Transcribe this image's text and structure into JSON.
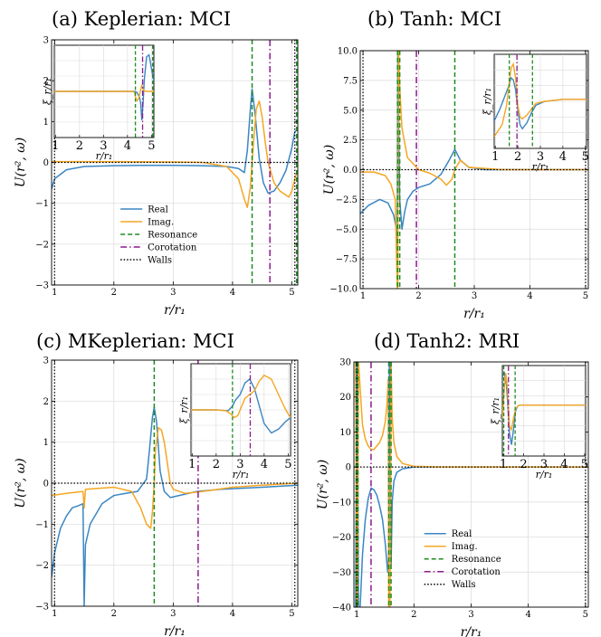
{
  "colors": {
    "real": "#3b86c4",
    "imag": "#f5a623",
    "resonance": "#1e8c1e",
    "corotation": "#8b1a8b",
    "walls": "#000000",
    "grid": "#d9d9d9"
  },
  "legend_labels": [
    "Real",
    "Imag.",
    "Resonance",
    "Corotation",
    "Walls"
  ],
  "chart_data": [
    {
      "type": "line",
      "title": "(a) Keplerian: MCI",
      "xlabel": "r/r₁",
      "ylabel": "U(r², ω)",
      "xlim": [
        0.95,
        5.1
      ],
      "ylim": [
        -3,
        3
      ],
      "xticks": [
        1,
        2,
        3,
        4,
        5
      ],
      "yticks": [
        -3,
        -2,
        -1,
        0,
        1,
        2,
        3
      ],
      "grid": true,
      "legend": "lower-center",
      "resonance_x": [
        4.33,
        5.08
      ],
      "corotation_x": [
        4.63
      ],
      "walls_x": [
        1.0,
        5.05
      ],
      "walls_y": [
        0
      ],
      "series": [
        {
          "name": "Real",
          "x": [
            0.95,
            1.0,
            1.2,
            1.5,
            2.0,
            2.5,
            3.0,
            3.5,
            3.9,
            4.1,
            4.2,
            4.25,
            4.3,
            4.33,
            4.38,
            4.45,
            4.52,
            4.6,
            4.7,
            4.8,
            4.9,
            5.0,
            5.05,
            5.1
          ],
          "y": [
            -0.65,
            -0.4,
            -0.18,
            -0.1,
            -0.08,
            -0.07,
            -0.07,
            -0.08,
            -0.1,
            -0.15,
            -0.25,
            0.3,
            1.3,
            1.8,
            1.2,
            0.1,
            -0.5,
            -0.75,
            -0.7,
            -0.5,
            -0.2,
            0.35,
            0.75,
            0.8
          ]
        },
        {
          "name": "Imag.",
          "x": [
            0.95,
            1.5,
            2.0,
            3.0,
            3.5,
            3.9,
            4.1,
            4.2,
            4.25,
            4.3,
            4.35,
            4.4,
            4.45,
            4.5,
            4.55,
            4.6,
            4.7,
            4.8,
            4.9,
            4.95,
            5.0,
            5.05,
            5.1
          ],
          "y": [
            0.02,
            0.02,
            0.02,
            0.01,
            0.0,
            -0.1,
            -0.4,
            -0.9,
            -1.1,
            -0.6,
            0.4,
            1.3,
            1.5,
            1.1,
            0.5,
            0.0,
            -0.5,
            -0.7,
            -0.8,
            -0.85,
            -0.7,
            -0.4,
            -0.2
          ]
        }
      ],
      "inset": {
        "xlabel": "r/r₁",
        "ylabel": "ξ_r/r₁",
        "xlim": [
          0.95,
          5.1
        ],
        "ylim": [
          -1.2,
          1.2
        ],
        "xticks": [
          1,
          2,
          3,
          4,
          5
        ],
        "resonance_x": [
          4.33,
          5.05
        ],
        "corotation_x": [
          4.63
        ],
        "series": [
          {
            "name": "Real",
            "x": [
              0.95,
              4.2,
              4.3,
              4.4,
              4.5,
              4.55,
              4.6,
              4.65,
              4.7,
              4.8,
              4.9,
              5.0,
              5.1
            ],
            "y": [
              0,
              0,
              0,
              -0.03,
              -0.15,
              -0.3,
              -0.75,
              -0.3,
              0.3,
              0.9,
              0.95,
              0.6,
              0.25
            ]
          },
          {
            "name": "Imag.",
            "x": [
              0.95,
              4.25,
              4.3,
              4.35,
              4.4,
              4.45,
              4.5,
              4.55,
              4.6,
              4.65,
              4.7,
              4.8,
              4.9,
              5.0,
              5.1
            ],
            "y": [
              0,
              0,
              -0.05,
              -0.18,
              -0.25,
              -0.2,
              -0.1,
              0.05,
              0.15,
              0.05,
              0.02,
              0.0,
              0.0,
              0.0,
              0.0
            ]
          }
        ]
      }
    },
    {
      "type": "line",
      "title": "(b) Tanh: MCI",
      "xlabel": "r/r₁",
      "ylabel": "U(r², ω)",
      "xlim": [
        0.95,
        5.05
      ],
      "ylim": [
        -10,
        10
      ],
      "xticks": [
        1,
        2,
        3,
        4,
        5
      ],
      "yticks": [
        -10.0,
        -7.5,
        -5.0,
        -2.5,
        0.0,
        2.5,
        5.0,
        7.5,
        10.0
      ],
      "grid": true,
      "resonance_x": [
        1.62,
        1.66,
        2.65
      ],
      "corotation_x": [
        1.96
      ],
      "walls_x": [
        1.0,
        5.0
      ],
      "walls_y": [
        0
      ],
      "series": [
        {
          "name": "Real",
          "x": [
            0.95,
            1.1,
            1.3,
            1.45,
            1.55,
            1.6,
            1.615,
            1.625,
            1.635,
            1.645,
            1.66,
            1.7,
            1.75,
            1.8,
            1.9,
            2.0,
            2.2,
            2.4,
            2.55,
            2.65,
            2.75,
            2.9,
            3.2,
            4.0,
            5.05
          ],
          "y": [
            -3.7,
            -3.0,
            -2.5,
            -2.8,
            -3.8,
            -5.0,
            -8,
            10,
            10,
            2.0,
            -2.5,
            -5.0,
            -3.5,
            -2.5,
            -1.8,
            -1.5,
            -1.2,
            -0.4,
            0.8,
            1.7,
            0.8,
            0.2,
            0.0,
            0.0,
            0.0
          ]
        },
        {
          "name": "Imag.",
          "x": [
            0.95,
            1.2,
            1.4,
            1.5,
            1.58,
            1.605,
            1.615,
            1.625,
            1.635,
            1.64,
            1.66,
            1.7,
            1.8,
            2.0,
            2.2,
            2.4,
            2.5,
            2.6,
            2.65,
            2.75,
            2.9,
            3.5,
            5.05
          ],
          "y": [
            -0.2,
            -0.2,
            -0.5,
            -1.2,
            -2.5,
            -8,
            -10,
            -10,
            10,
            10,
            7.0,
            3.5,
            1.0,
            0.0,
            -0.3,
            -0.8,
            -1.3,
            -0.8,
            0.0,
            0.8,
            0.2,
            0.0,
            0.0
          ]
        }
      ],
      "inset": {
        "xlabel": "r/r₁",
        "ylabel": "ξ_r/r₁",
        "xlim": [
          0.95,
          5.05
        ],
        "ylim": [
          -1.2,
          1.2
        ],
        "xticks": [
          1,
          2,
          3,
          4,
          5
        ],
        "resonance_x": [
          1.62,
          2.65
        ],
        "corotation_x": [
          1.96
        ],
        "series": [
          {
            "name": "Real",
            "x": [
              0.95,
              1.2,
              1.4,
              1.6,
              1.7,
              1.8,
              1.9,
              2.0,
              2.1,
              2.2,
              2.4,
              2.6,
              2.8,
              3.2,
              4.0,
              5.05
            ],
            "y": [
              -0.5,
              -0.2,
              0.1,
              0.4,
              0.6,
              0.55,
              0.3,
              -0.2,
              -0.6,
              -0.7,
              -0.55,
              -0.3,
              -0.1,
              0.0,
              0.05,
              0.05
            ]
          },
          {
            "name": "Imag.",
            "x": [
              0.95,
              1.3,
              1.5,
              1.6,
              1.7,
              1.8,
              1.9,
              2.0,
              2.1,
              2.2,
              2.4,
              2.6,
              2.8,
              3.2,
              4.0,
              5.05
            ],
            "y": [
              -0.9,
              -0.6,
              -0.1,
              0.4,
              0.85,
              0.95,
              0.6,
              -0.1,
              -0.4,
              -0.45,
              -0.35,
              -0.2,
              -0.05,
              0.0,
              0.05,
              0.05
            ]
          }
        ]
      }
    },
    {
      "type": "line",
      "title": "(c) MKeplerian: MCI",
      "xlabel": "r/r₁",
      "ylabel": "U(r², ω)",
      "xlim": [
        0.95,
        5.1
      ],
      "ylim": [
        -3,
        3
      ],
      "xticks": [
        1,
        2,
        3,
        4,
        5
      ],
      "yticks": [
        -3,
        -2,
        -1,
        0,
        1,
        2,
        3
      ],
      "grid": true,
      "resonance_x": [
        2.68
      ],
      "corotation_x": [
        3.42
      ],
      "walls_x": [
        1.0,
        5.05
      ],
      "walls_y": [
        0
      ],
      "series": [
        {
          "name": "Real",
          "x": [
            0.95,
            1.0,
            1.1,
            1.2,
            1.3,
            1.4,
            1.48,
            1.5,
            1.52,
            1.6,
            1.8,
            2.0,
            2.2,
            2.4,
            2.55,
            2.6,
            2.65,
            2.68,
            2.72,
            2.78,
            2.85,
            2.95,
            3.1,
            3.4,
            3.8,
            4.5,
            5.1
          ],
          "y": [
            -2.3,
            -1.7,
            -1.1,
            -0.8,
            -0.6,
            -0.55,
            -0.5,
            -3.0,
            -1.5,
            -1.0,
            -0.5,
            -0.3,
            -0.25,
            -0.2,
            0.1,
            0.8,
            1.6,
            1.85,
            1.5,
            0.3,
            -0.2,
            -0.35,
            -0.3,
            -0.2,
            -0.15,
            -0.1,
            -0.05
          ]
        },
        {
          "name": "Imag.",
          "x": [
            0.95,
            1.2,
            1.48,
            1.5,
            1.52,
            2.0,
            2.3,
            2.45,
            2.55,
            2.62,
            2.65,
            2.68,
            2.7,
            2.75,
            2.8,
            2.85,
            2.9,
            2.95,
            3.0,
            3.2,
            3.5,
            4.0,
            4.5,
            5.1
          ],
          "y": [
            -0.3,
            -0.25,
            -0.2,
            -0.6,
            -0.15,
            -0.1,
            -0.2,
            -0.6,
            -1.0,
            -1.1,
            -0.7,
            0.0,
            0.8,
            1.35,
            1.3,
            1.0,
            0.5,
            0.0,
            -0.15,
            -0.25,
            -0.2,
            -0.1,
            -0.05,
            0.0
          ]
        }
      ],
      "inset": {
        "xlabel": "r/r₁",
        "ylabel": "ξ_r/r₁",
        "xlim": [
          0.95,
          5.1
        ],
        "ylim": [
          -1.2,
          1.2
        ],
        "xticks": [
          1,
          2,
          3,
          4,
          5
        ],
        "resonance_x": [
          2.68
        ],
        "corotation_x": [
          3.42
        ],
        "series": [
          {
            "name": "Real",
            "x": [
              0.95,
              2.0,
              2.5,
              2.68,
              2.8,
              3.0,
              3.2,
              3.4,
              3.6,
              3.8,
              4.0,
              4.3,
              4.6,
              4.9,
              5.1
            ],
            "y": [
              0,
              0.0,
              -0.02,
              0.1,
              0.25,
              0.4,
              0.7,
              0.8,
              0.55,
              0.1,
              -0.35,
              -0.6,
              -0.5,
              -0.3,
              -0.2
            ]
          },
          {
            "name": "Imag.",
            "x": [
              0.95,
              2.0,
              2.4,
              2.6,
              2.75,
              2.9,
              3.0,
              3.2,
              3.4,
              3.6,
              3.8,
              4.0,
              4.3,
              4.6,
              4.9,
              5.1
            ],
            "y": [
              0,
              0.0,
              -0.02,
              -0.1,
              -0.2,
              -0.15,
              0.0,
              0.3,
              0.4,
              0.5,
              0.75,
              0.9,
              0.8,
              0.4,
              0.0,
              -0.2
            ]
          }
        ]
      }
    },
    {
      "type": "line",
      "title": "(d) Tanh2: MRI",
      "xlabel": "r/r₁",
      "ylabel": "U(r², ω)",
      "xlim": [
        0.95,
        5.05
      ],
      "ylim": [
        -40,
        30
      ],
      "xticks": [
        1,
        2,
        3,
        4,
        5
      ],
      "yticks": [
        -40,
        -30,
        -20,
        -10,
        0,
        10,
        20,
        30
      ],
      "grid": true,
      "legend": "lower-center",
      "resonance_x": [
        0.99,
        1.02,
        1.56,
        1.6
      ],
      "corotation_x": [
        1.25
      ],
      "walls_x": [
        1.0,
        5.0
      ],
      "walls_y": [
        0
      ],
      "series": [
        {
          "name": "Real",
          "x": [
            0.95,
            0.98,
            1.0,
            1.01,
            1.03,
            1.06,
            1.1,
            1.15,
            1.2,
            1.25,
            1.3,
            1.35,
            1.4,
            1.45,
            1.5,
            1.54,
            1.56,
            1.57,
            1.58,
            1.6,
            1.62,
            1.65,
            1.7,
            1.8,
            2.0,
            2.5,
            5.05
          ],
          "y": [
            -40,
            -40,
            30,
            30,
            -40,
            -40,
            -25,
            -15,
            -9,
            -6,
            -6.5,
            -8,
            -11,
            -15,
            -22,
            -30,
            -25,
            30,
            30,
            -28,
            -10,
            -4,
            -1.5,
            -0.5,
            0.0,
            0.0,
            0.0
          ]
        },
        {
          "name": "Imag.",
          "x": [
            0.95,
            0.98,
            1.0,
            1.01,
            1.03,
            1.05,
            1.1,
            1.15,
            1.2,
            1.25,
            1.3,
            1.35,
            1.4,
            1.45,
            1.5,
            1.53,
            1.55,
            1.56,
            1.58,
            1.6,
            1.62,
            1.65,
            1.7,
            1.8,
            2.0,
            2.5,
            5.05
          ],
          "y": [
            30,
            30,
            -40,
            -40,
            30,
            25,
            12,
            8,
            6,
            5,
            5,
            6,
            7,
            9,
            13,
            18,
            25,
            -40,
            -40,
            30,
            14,
            7,
            3,
            1,
            0.2,
            0.0,
            0.0
          ]
        }
      ],
      "inset": {
        "xlabel": "r/r₁",
        "ylabel": "ξ_r/r₁",
        "xlim": [
          0.95,
          5.05
        ],
        "ylim": [
          -1.2,
          1.2
        ],
        "xticks": [
          1,
          2,
          3,
          4,
          5
        ],
        "resonance_x": [
          1.02,
          1.58
        ],
        "corotation_x": [
          1.25
        ],
        "series": [
          {
            "name": "Real",
            "x": [
              0.95,
              1.05,
              1.15,
              1.2,
              1.3,
              1.4,
              1.5,
              1.6,
              1.7,
              1.8,
              2.0,
              3.0,
              5.05
            ],
            "y": [
              0.9,
              1.0,
              0.7,
              0.3,
              -0.6,
              -0.9,
              -0.5,
              0.0,
              0.12,
              0.15,
              0.15,
              0.15,
              0.15
            ]
          },
          {
            "name": "Imag.",
            "x": [
              0.95,
              1.05,
              1.12,
              1.2,
              1.3,
              1.4,
              1.5,
              1.6,
              1.7,
              1.8,
              2.0,
              3.0,
              5.05
            ],
            "y": [
              -0.2,
              0.6,
              1.0,
              0.6,
              -0.4,
              -0.5,
              -0.2,
              0.05,
              0.12,
              0.15,
              0.15,
              0.15,
              0.15
            ]
          }
        ]
      }
    }
  ]
}
